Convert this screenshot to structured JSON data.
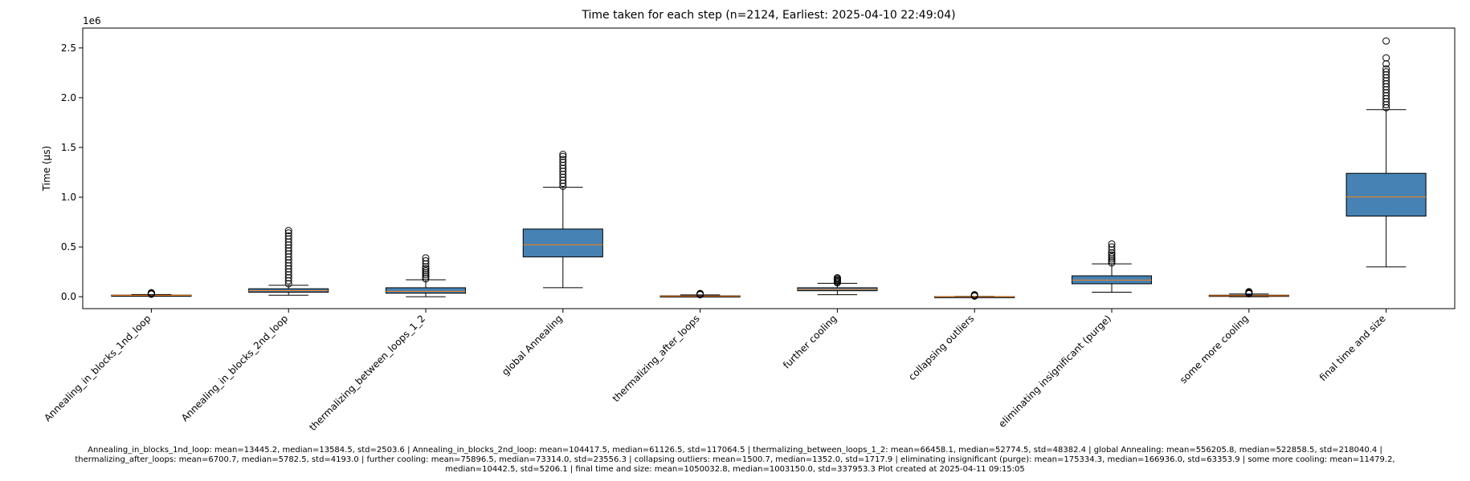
{
  "chart_data": {
    "type": "box",
    "title": "Time taken for each step (n=2124, Earliest: 2025-04-10 22:49:04)",
    "ylabel": "Time (µs)",
    "y_offset_label": "1e6",
    "ylim": [
      -0.12,
      2.7
    ],
    "yticks": [
      0.0,
      0.5,
      1.0,
      1.5,
      2.0,
      2.5
    ],
    "ytick_labels": [
      "0.0",
      "0.5",
      "1.0",
      "1.5",
      "2.0",
      "2.5"
    ],
    "box_color": "#4682b4",
    "median_color": "#ff7f0e",
    "categories": [
      "Annealing_in_blocks_1nd_loop",
      "Annealing_in_blocks_2nd_loop",
      "thermalizing_between_loops_1_2",
      "global Annealing",
      "thermalizing_after_loops",
      "further cooling",
      "collapsing outliers",
      "eliminating insignificant (purge)",
      "some more cooling",
      "final time and size"
    ],
    "boxes": [
      {
        "whisker_low": 0.005,
        "q1": 0.011,
        "median": 0.0136,
        "q3": 0.016,
        "whisker_high": 0.022,
        "outliers": [
          0.025,
          0.028,
          0.031,
          0.034,
          0.037,
          0.04
        ]
      },
      {
        "whisker_low": 0.015,
        "q1": 0.045,
        "median": 0.061,
        "q3": 0.08,
        "whisker_high": 0.115,
        "outliers": [
          0.13,
          0.16,
          0.19,
          0.22,
          0.25,
          0.28,
          0.31,
          0.34,
          0.37,
          0.4,
          0.43,
          0.46,
          0.49,
          0.52,
          0.55,
          0.58,
          0.61,
          0.64,
          0.665
        ]
      },
      {
        "whisker_low": 0.0,
        "q1": 0.035,
        "median": 0.053,
        "q3": 0.09,
        "whisker_high": 0.17,
        "outliers": [
          0.18,
          0.2,
          0.22,
          0.24,
          0.26,
          0.28,
          0.3,
          0.33,
          0.36,
          0.39
        ]
      },
      {
        "whisker_low": 0.09,
        "q1": 0.4,
        "median": 0.523,
        "q3": 0.68,
        "whisker_high": 1.1,
        "outliers": [
          1.11,
          1.14,
          1.17,
          1.2,
          1.23,
          1.26,
          1.29,
          1.32,
          1.35,
          1.38,
          1.41,
          1.43
        ]
      },
      {
        "whisker_low": 0.0,
        "q1": 0.003,
        "median": 0.0058,
        "q3": 0.009,
        "whisker_high": 0.018,
        "outliers": [
          0.02,
          0.024,
          0.028,
          0.032
        ]
      },
      {
        "whisker_low": 0.02,
        "q1": 0.06,
        "median": 0.073,
        "q3": 0.09,
        "whisker_high": 0.135,
        "outliers": [
          0.14,
          0.15,
          0.16,
          0.17,
          0.18,
          0.19
        ]
      },
      {
        "whisker_low": 0.0,
        "q1": 0.0008,
        "median": 0.00135,
        "q3": 0.002,
        "whisker_high": 0.004,
        "outliers": [
          0.006,
          0.01,
          0.015,
          0.02
        ]
      },
      {
        "whisker_low": 0.045,
        "q1": 0.13,
        "median": 0.167,
        "q3": 0.21,
        "whisker_high": 0.33,
        "outliers": [
          0.34,
          0.36,
          0.38,
          0.4,
          0.42,
          0.44,
          0.47,
          0.5,
          0.53
        ]
      },
      {
        "whisker_low": 0.0,
        "q1": 0.007,
        "median": 0.0104,
        "q3": 0.015,
        "whisker_high": 0.027,
        "outliers": [
          0.03,
          0.035,
          0.04,
          0.045,
          0.05
        ]
      },
      {
        "whisker_low": 0.3,
        "q1": 0.81,
        "median": 1.003,
        "q3": 1.24,
        "whisker_high": 1.88,
        "outliers": [
          1.9,
          1.93,
          1.96,
          1.99,
          2.02,
          2.05,
          2.08,
          2.11,
          2.14,
          2.17,
          2.2,
          2.23,
          2.26,
          2.29,
          2.34,
          2.4,
          2.57
        ]
      }
    ]
  },
  "footer": {
    "line1": "Annealing_in_blocks_1nd_loop: mean=13445.2, median=13584.5, std=2503.6 | Annealing_in_blocks_2nd_loop: mean=104417.5, median=61126.5, std=117064.5 | thermalizing_between_loops_1_2: mean=66458.1, median=52774.5, std=48382.4 | global Annealing: mean=556205.8, median=522858.5, std=218040.4 |",
    "line2": "thermalizing_after_loops: mean=6700.7, median=5782.5, std=4193.0 | further cooling: mean=75896.5, median=73314.0, std=23556.3 | collapsing outliers: mean=1500.7, median=1352.0, std=1717.9 | eliminating insignificant (purge): mean=175334.3, median=166936.0, std=63353.9 | some more cooling: mean=11479.2,",
    "line3": "median=10442.5, std=5206.1 | final time and size: mean=1050032.8, median=1003150.0, std=337953.3    Plot created at 2025-04-11 09:15:05"
  }
}
